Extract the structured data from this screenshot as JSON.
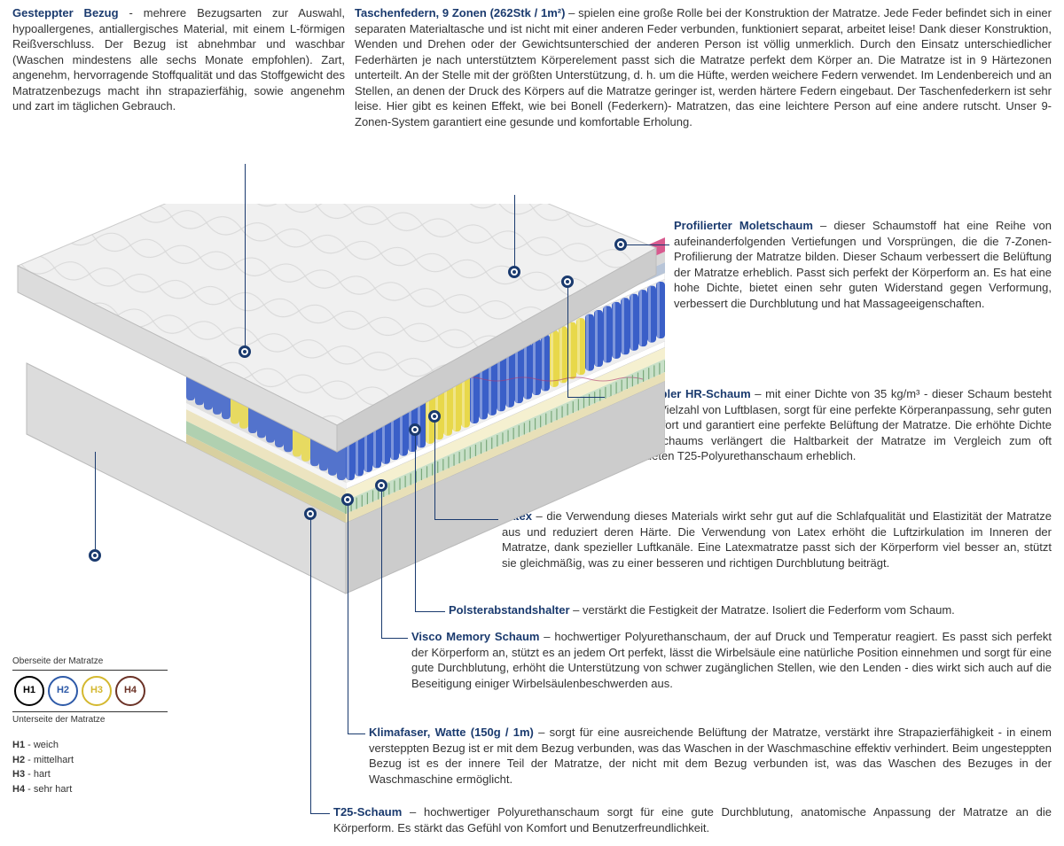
{
  "sections": {
    "cover": {
      "title": "Gesteppter Bezug",
      "text": " - mehrere Bezugsarten zur Auswahl, hypoallergenes, antiallergisches Material, mit einem L-förmigen Reißverschluss. Der Bezug ist abnehmbar und waschbar (Waschen mindestens alle sechs Monate empfohlen). Zart, angenehm, hervorragende Stoffqualität und das Stoffgewicht des Matratzenbezugs macht ihn strapazierfähig, sowie angenehm und zart im täglichen Gebrauch."
    },
    "springs": {
      "title": "Taschenfedern, 9 Zonen (262Stk / 1m²)",
      "text": " – spielen eine große Rolle bei der Konstruktion der Matratze. Jede Feder befindet sich in einer separaten Materialtasche und ist nicht mit einer anderen Feder verbunden, funktioniert separat, arbeitet leise! Dank dieser Konstruktion, Wenden und Drehen oder der Gewichtsunterschied der anderen Person ist völlig unmerklich. Durch den Einsatz unterschiedlicher Federhärten je nach unterstütztem Körperelement passt sich die Matratze perfekt dem Körper an. Die Matratze ist in 9 Härtezonen unterteilt. An der Stelle mit der größten Unterstützung, d. h. um die Hüfte, werden weichere Federn verwendet. Im Lendenbereich und an Stellen, an denen der Druck des Körpers auf die Matratze geringer ist, werden härtere Federn eingebaut. Der Taschenfederkern ist sehr leise. Hier gibt es keinen Effekt, wie bei Bonell (Federkern)- Matratzen, das eine leichtere Person auf eine andere rutscht. Unser 9-Zonen-System garantiert eine gesunde und komfortable Erholung."
    },
    "molet": {
      "title": "Profilierter Moletschaum",
      "text": " – dieser Schaumstoff hat eine Reihe von aufeinanderfolgenden Vertiefungen und Vorsprüngen, die die 7-Zonen-Profilierung der Matratze bilden. Dieser Schaum verbessert die Belüftung der Matratze erheblich. Passt sich perfekt der Körperform an. Es hat eine hohe Dichte, bietet einen sehr guten Widerstand gegen Verformung, verbessert die Durchblutung und hat Massageeigenschaften."
    },
    "hr": {
      "title": "Hochflexibler HR-Schaum",
      "text": " – mit einer Dichte von 35 kg/m³ - dieser Schaum besteht aus einer Vielzahl von Luftblasen, sorgt für eine perfekte Körperanpassung, sehr guten Schlafkomfort und garantiert eine perfekte Belüftung der Matratze. Die erhöhte Dichte des HR-Schaums verlängert die Haltbarkeit der Matratze im Vergleich zum oft verwendeten T25-Polyurethanschaum erheblich."
    },
    "latex": {
      "title": "Latex",
      "text": " – die Verwendung dieses Materials wirkt sehr gut auf die Schlafqualität und Elastizität der Matratze aus und reduziert deren Härte. Die Verwendung von Latex erhöht die Luftzirkulation im Inneren der Matratze, dank spezieller Luftkanäle. Eine Latexmatratze passt sich der Körperform viel besser an, stützt sie gleichmäßig, was zu einer besseren und richtigen Durchblutung beiträgt."
    },
    "spacer": {
      "title": "Polsterabstandshalter",
      "text": " – verstärkt die Festigkeit der Matratze. Isoliert die Federform vom Schaum."
    },
    "visco": {
      "title": "Visco Memory Schaum",
      "text": " – hochwertiger Polyurethanschaum, der auf Druck und Temperatur reagiert. Es passt sich perfekt der Körperform an, stützt es an jedem Ort perfekt, lässt die Wirbelsäule eine natürliche Position einnehmen und sorgt für eine gute Durchblutung, erhöht die Unterstützung von schwer zugänglichen Stellen, wie den Lenden - dies wirkt sich auch auf die Beseitigung einiger Wirbelsäulenbeschwerden aus."
    },
    "klima": {
      "title": "Klimafaser, Watte (150g / 1m)",
      "text": " – sorgt für eine ausreichende Belüftung der Matratze, verstärkt ihre Strapazierfähigkeit - in einem versteppten Bezug ist er mit dem Bezug verbunden, was das Waschen in der Waschmaschine effektiv verhindert. Beim ungesteppten Bezug ist es der innere Teil der Matratze, der nicht mit dem Bezug verbunden ist, was das Waschen des Bezuges in der Waschmaschine ermöglicht."
    },
    "t25": {
      "title": "T25-Schaum",
      "text": " – hochwertiger Polyurethanschaum sorgt für eine gute Durchblutung, anatomische Anpassung der Matratze an die Körperform. Es stärkt das Gefühl von Komfort und Benutzerfreundlichkeit."
    }
  },
  "hardness": {
    "top_label": "Oberseite der Matratze",
    "bottom_label": "Unterseite der Matratze",
    "items": [
      {
        "code": "H1",
        "label": "weich",
        "color": "#000000"
      },
      {
        "code": "H2",
        "label": "mittelhart",
        "color": "#2e5aa8"
      },
      {
        "code": "H3",
        "label": "hart",
        "color": "#d4b82f"
      },
      {
        "code": "H4",
        "label": "sehr hart",
        "color": "#6b3226"
      }
    ]
  },
  "colors": {
    "title": "#1a3a6e",
    "cover": "#e8e8e8",
    "cover_side": "#d0d0d0",
    "molet": "#d85a8f",
    "hr": "#d8d8d8",
    "latex": "#b8c5d8",
    "spacer": "#ffffff",
    "spring_blue": "#3a5fc8",
    "spring_yellow": "#e8d84a",
    "visco": "#f5f0d0",
    "klima": "#c8e0c8",
    "t25": "#e8e0b8"
  }
}
